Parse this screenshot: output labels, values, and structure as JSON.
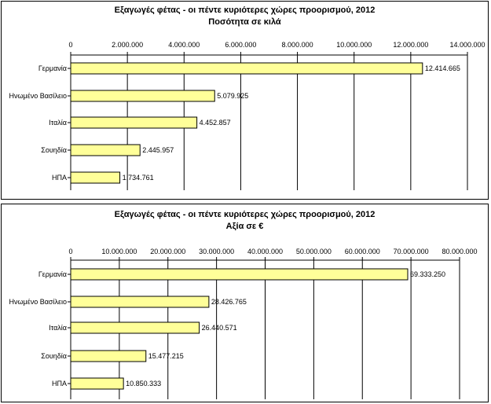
{
  "chart_data": [
    {
      "type": "bar",
      "orientation": "horizontal",
      "title": "Εξαγωγές φέτας - οι πέντε κυριότερες χώρες προορισμού, 2012",
      "subtitle": "Ποσότητα σε κιλά",
      "categories": [
        "Γερμανία",
        "Ηνωμένο Βασίλειο",
        "Ιταλία",
        "Σουηδία",
        "ΗΠΑ"
      ],
      "values": [
        12414665,
        5079925,
        4452857,
        2445957,
        1734761
      ],
      "data_labels": [
        "12.414.665",
        "5.079.925",
        "4.452.857",
        "2.445.957",
        "1.734.761"
      ],
      "xlim": [
        0,
        14000000
      ],
      "ticks": [
        "0",
        "2.000.000",
        "4.000.000",
        "6.000.000",
        "8.000.000",
        "10.000.000",
        "12.000.000",
        "14.000.000"
      ],
      "tick_values": [
        0,
        2000000,
        4000000,
        6000000,
        8000000,
        10000000,
        12000000,
        14000000
      ],
      "axis_position": "top",
      "grid": true,
      "bar_color": "#ffff99"
    },
    {
      "type": "bar",
      "orientation": "horizontal",
      "title": "Εξαγωγές φέτας - οι πέντε κυριότερες χώρες προορισμού, 2012",
      "subtitle": "Αξία σε €",
      "categories": [
        "Γερμανία",
        "Ηνωμένο Βασίλειο",
        "Ιταλία",
        "Σουηδία",
        "ΗΠΑ"
      ],
      "values": [
        69333250,
        28426765,
        26440571,
        15477215,
        10850333
      ],
      "data_labels": [
        "69.333.250",
        "28.426.765",
        "26.440.571",
        "15.477.215",
        "10.850.333"
      ],
      "xlim": [
        0,
        80000000
      ],
      "ticks": [
        "0",
        "10.000.000",
        "20.000.000",
        "30.000.000",
        "40.000.000",
        "50.000.000",
        "60.000.000",
        "70.000.000",
        "80.000.000"
      ],
      "tick_values": [
        0,
        10000000,
        20000000,
        30000000,
        40000000,
        50000000,
        60000000,
        70000000,
        80000000
      ],
      "axis_position": "top",
      "grid": true,
      "bar_color": "#ffff99"
    }
  ]
}
